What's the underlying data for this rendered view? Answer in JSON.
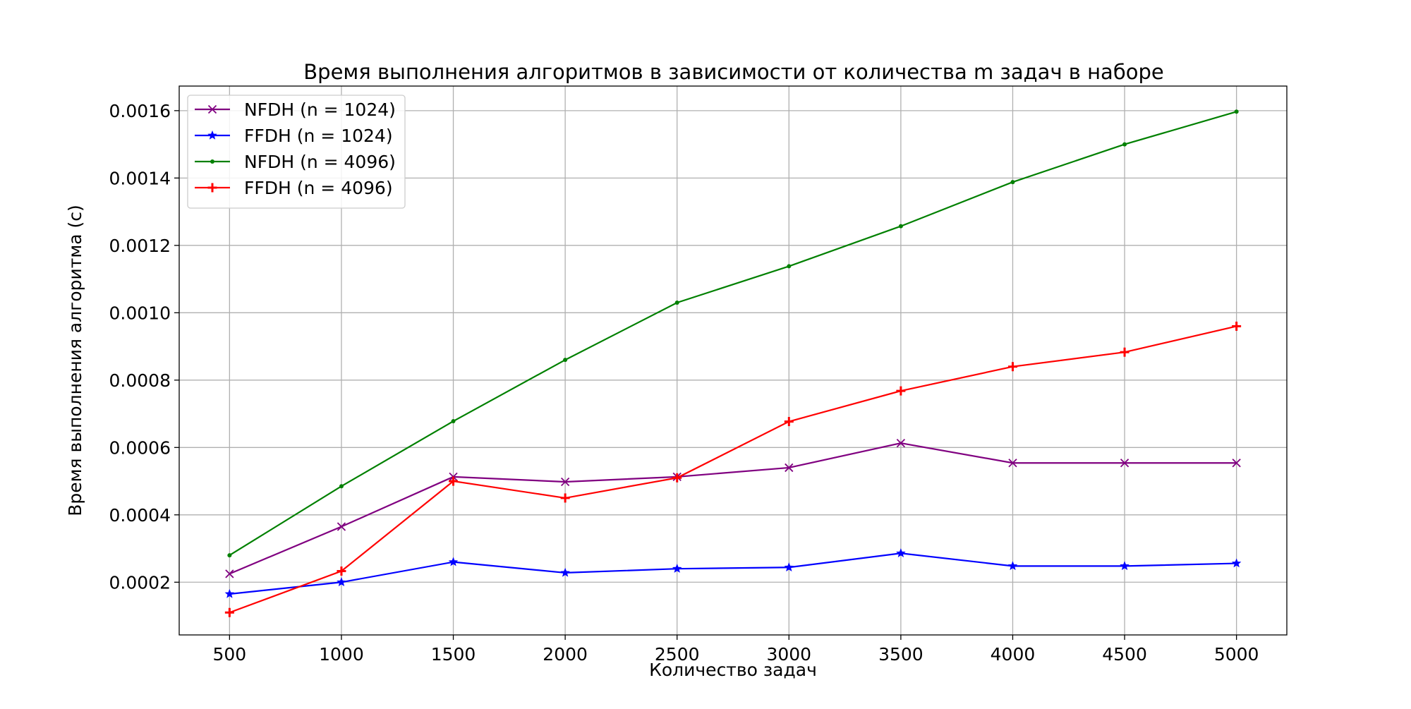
{
  "chart_data": {
    "type": "line",
    "title": "Время выполнения алгоритмов в зависимости от количества m задач в наборе",
    "xlabel": "Количество задач",
    "ylabel": "Время выполнения алгоритма (с)",
    "x": [
      500,
      1000,
      1500,
      2000,
      2500,
      3000,
      3500,
      4000,
      4500,
      5000
    ],
    "x_ticks": [
      "500",
      "1000",
      "1500",
      "2000",
      "2500",
      "3000",
      "3500",
      "4000",
      "4500",
      "5000"
    ],
    "y_ticks": [
      "0.0002",
      "0.0004",
      "0.0006",
      "0.0008",
      "0.0010",
      "0.0012",
      "0.0014",
      "0.0016"
    ],
    "y_tick_values": [
      0.0002,
      0.0004,
      0.0006,
      0.0008,
      0.001,
      0.0012,
      0.0014,
      0.0016
    ],
    "xlim": [
      275,
      5225
    ],
    "ylim": [
      4.35e-05,
      0.001673
    ],
    "grid": true,
    "legend_position": "top-left",
    "series": [
      {
        "name": "NFDH (n = 1024)",
        "color": "#800080",
        "marker": "x",
        "values": [
          0.000225,
          0.000365,
          0.000513,
          0.000498,
          0.000513,
          0.00054,
          0.000613,
          0.000554,
          0.000554,
          0.000554
        ]
      },
      {
        "name": "FFDH (n = 1024)",
        "color": "#0000ff",
        "marker": "star",
        "values": [
          0.000165,
          0.0002,
          0.00026,
          0.000228,
          0.00024,
          0.000244,
          0.000286,
          0.000248,
          0.000248,
          0.000256
        ]
      },
      {
        "name": "NFDH (n = 4096)",
        "color": "#008000",
        "marker": "point",
        "values": [
          0.00028,
          0.000485,
          0.000678,
          0.00086,
          0.00103,
          0.001138,
          0.001257,
          0.001388,
          0.0015,
          0.001597
        ]
      },
      {
        "name": "FFDH (n = 4096)",
        "color": "#ff0000",
        "marker": "plus",
        "values": [
          0.00011,
          0.000233,
          0.0005,
          0.00045,
          0.00051,
          0.000677,
          0.000768,
          0.00084,
          0.000883,
          0.00096
        ]
      }
    ]
  }
}
